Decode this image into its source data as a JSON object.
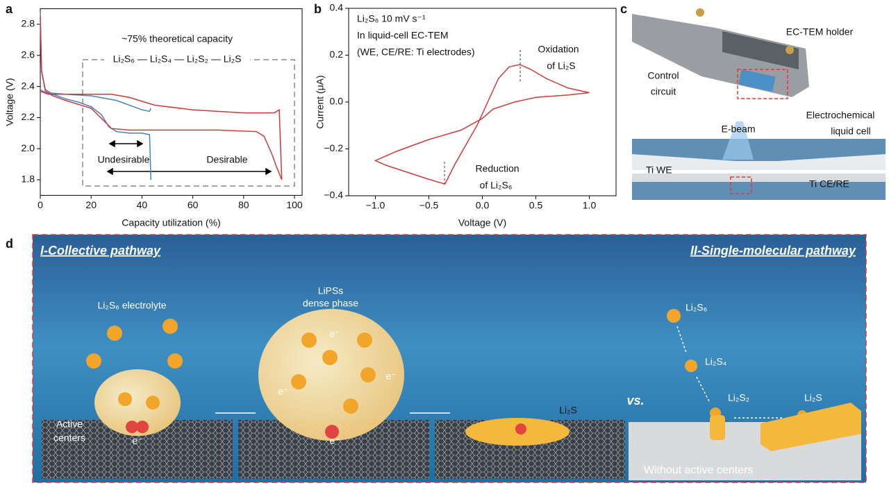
{
  "panel_labels": {
    "a": "a",
    "b": "b",
    "c": "c",
    "d": "d"
  },
  "chart_data": [
    {
      "type": "line",
      "x_label": "Capacity utilization (%)",
      "y_label": "Voltage (V)",
      "xlim": [
        0,
        103
      ],
      "ylim": [
        1.7,
        2.9
      ],
      "xticks": [
        0,
        20,
        40,
        60,
        80,
        100
      ],
      "yticks": [
        1.8,
        {
          "value": 2,
          "label": "2.0"
        },
        2.2,
        2.4,
        2.6,
        2.8
      ],
      "series": [
        {
          "color": "#4a7fc0",
          "x": [
            0,
            0.5,
            2,
            5,
            10,
            15,
            20,
            24,
            27,
            30,
            35,
            40,
            43,
            43.5
          ],
          "values": [
            2.88,
            2.5,
            2.38,
            2.35,
            2.32,
            2.3,
            2.27,
            2.22,
            2.14,
            2.11,
            2.1,
            2.1,
            2.09,
            1.8
          ]
        },
        {
          "color": "#4a7fc0",
          "x": [
            0,
            2,
            10,
            20,
            30,
            35,
            40,
            43,
            43.5
          ],
          "values": [
            2.38,
            2.36,
            2.35,
            2.34,
            2.31,
            2.28,
            2.25,
            2.24,
            2.26
          ]
        },
        {
          "color": "#d0393a",
          "x": [
            0,
            0.5,
            2,
            5,
            10,
            20,
            25,
            28,
            35,
            50,
            70,
            85,
            88,
            91,
            93,
            95
          ],
          "values": [
            2.85,
            2.5,
            2.37,
            2.34,
            2.31,
            2.26,
            2.18,
            2.13,
            2.12,
            2.12,
            2.12,
            2.11,
            2.08,
            1.97,
            1.88,
            1.8
          ]
        },
        {
          "color": "#d0393a",
          "x": [
            0,
            3,
            10,
            20,
            28,
            35,
            45,
            60,
            80,
            92,
            94,
            95
          ],
          "values": [
            2.37,
            2.35,
            2.35,
            2.35,
            2.35,
            2.33,
            2.28,
            2.25,
            2.23,
            2.23,
            2.25,
            1.8
          ]
        }
      ],
      "annotations": [
        "~75% theoretical capacity",
        "Li₂S₆ — Li₂S₄ — Li₂S₂ — Li₂S",
        "Undesirable",
        "Desirable"
      ]
    },
    {
      "type": "line",
      "x_label": "Voltage (V)",
      "y_label": "Current (μA)",
      "xlim": [
        -1.25,
        1.25
      ],
      "ylim": [
        -0.4,
        0.4
      ],
      "xticks": [
        {
          "value": -1,
          "label": "−1.0"
        },
        {
          "value": -0.5,
          "label": "−0.5"
        },
        {
          "value": 0,
          "label": "0.0"
        },
        0.5,
        {
          "value": 1,
          "label": "1.0"
        }
      ],
      "yticks": [
        {
          "value": -0.4,
          "label": "−0.4"
        },
        {
          "value": -0.2,
          "label": "−0.2"
        },
        {
          "value": 0,
          "label": "0.0"
        },
        0.2,
        0.4
      ],
      "series": [
        {
          "color": "#d0393a",
          "x": [
            1.0,
            0.8,
            0.6,
            0.45,
            0.35,
            0.25,
            0.15,
            0.05,
            -0.05,
            -0.15,
            -0.25,
            -0.35,
            -0.5,
            -0.7,
            -0.9,
            -1.0,
            -0.8,
            -0.5,
            -0.2,
            0.0,
            0.1,
            0.3,
            0.5,
            0.8,
            1.0
          ],
          "values": [
            0.04,
            0.06,
            0.1,
            0.14,
            0.16,
            0.15,
            0.1,
            0.0,
            -0.1,
            -0.18,
            -0.26,
            -0.35,
            -0.33,
            -0.3,
            -0.27,
            -0.25,
            -0.21,
            -0.16,
            -0.12,
            -0.07,
            -0.03,
            0.0,
            0.02,
            0.03,
            0.04
          ]
        }
      ],
      "annotations": [
        "Li₂S₆ 10 mV s⁻¹",
        "In liquid-cell EC-TEM",
        "(WE, CE/RE: Ti electrodes)",
        "Oxidation",
        "of Li₂S",
        "Reduction",
        "of Li₂S₆"
      ]
    }
  ],
  "panel_c": {
    "holder": "EC-TEM holder",
    "control": [
      "Control",
      "circuit"
    ],
    "cell": [
      "Electrochemical",
      "liquid cell"
    ],
    "beam": "E-beam",
    "we": "Ti WE",
    "ce": "Ti CE/RE"
  },
  "panel_d": {
    "collective": "I-Collective pathway",
    "single": "II-Single-molecular pathway",
    "electrolyte": "Li₂S₆ electrolyte",
    "dense": [
      "LiPSs",
      "dense phase"
    ],
    "active": [
      "Active",
      "centers"
    ],
    "electron": "e⁻",
    "product": "Li₂S",
    "vs": "vs.",
    "species": [
      "Li₂S₆",
      "Li₂S₄",
      "Li₂S₂",
      "Li₂S"
    ],
    "without": "Without active centers"
  }
}
